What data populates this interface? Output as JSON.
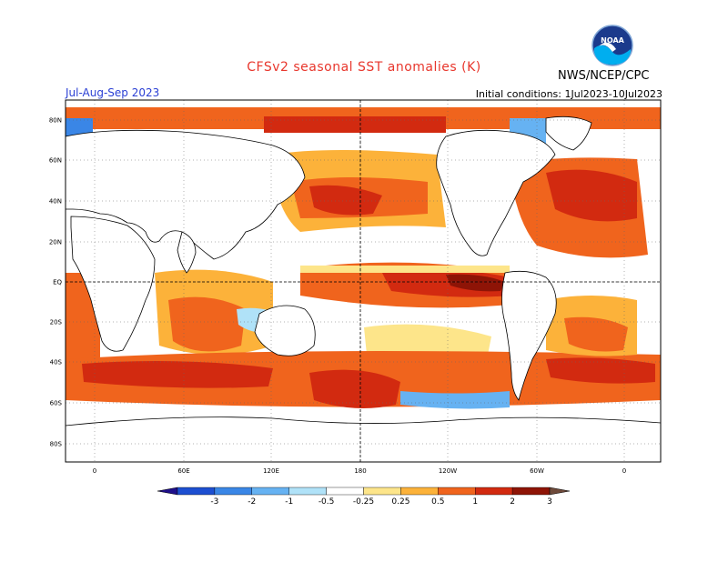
{
  "title": "CFSv2 seasonal SST anomalies (K)",
  "season": "Jul-Aug-Sep 2023",
  "initial_conditions": "Initial conditions: 1Jul2023-10Jul2023",
  "agency": "NWS/NCEP/CPC",
  "logo_text": "NOAA",
  "lat_labels": [
    "80N",
    "60N",
    "40N",
    "20N",
    "EQ",
    "20S",
    "40S",
    "60S",
    "80S"
  ],
  "lon_labels": [
    "0",
    "60E",
    "120E",
    "180",
    "120W",
    "60W",
    "0"
  ],
  "colorbar": {
    "ticks": [
      "-3",
      "-2",
      "-1",
      "-0.5",
      "-0.25",
      "0.25",
      "0.5",
      "1",
      "2",
      "3"
    ],
    "colors": [
      "#1f0f8a",
      "#1d4fd1",
      "#3a86e6",
      "#66b2f2",
      "#b0e2f8",
      "#ffffff",
      "#fde58a",
      "#fcb23a",
      "#f0641d",
      "#d22a10",
      "#8e1406",
      "#6e4a3a"
    ]
  },
  "map_colors": {
    "land": "#ffffff",
    "coast": "#000000",
    "grid": "#666666"
  }
}
